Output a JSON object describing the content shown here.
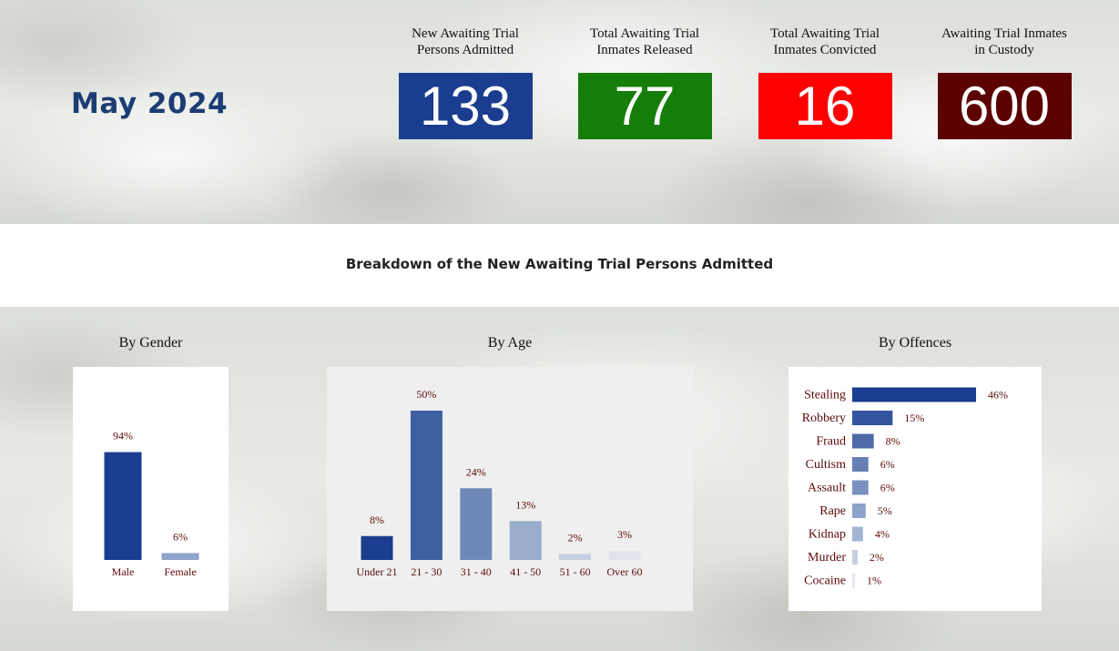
{
  "header": {
    "month": "May 2024",
    "kpis": [
      {
        "label_line1": "New Awaiting Trial",
        "label_line2": "Persons Admitted",
        "value": "133",
        "color": "#1b3d8f"
      },
      {
        "label_line1": "Total Awaiting Trial",
        "label_line2": "Inmates Released",
        "value": "77",
        "color": "#157e09"
      },
      {
        "label_line1": "Total Awaiting Trial",
        "label_line2": "Inmates Convicted",
        "value": "16",
        "color": "#fe0000"
      },
      {
        "label_line1": "Awaiting Trial Inmates",
        "label_line2": "in Custody",
        "value": "600",
        "color": "#5c0000"
      }
    ]
  },
  "breakdown_title": "Breakdown of the New Awaiting Trial Persons Admitted",
  "panels": {
    "gender_title": "By Gender",
    "age_title": "By Age",
    "offence_title": "By Offences"
  },
  "label_color": "#5c0a0a",
  "chart_data": [
    {
      "type": "bar",
      "orientation": "vertical",
      "categories": [
        "Male",
        "Female"
      ],
      "values": [
        94,
        6
      ],
      "labels": [
        "94%",
        "6%"
      ],
      "colors": [
        "#1b3d8f",
        "#8fa3cb"
      ],
      "ylim": [
        0,
        100
      ]
    },
    {
      "type": "bar",
      "orientation": "vertical",
      "categories": [
        "Under 21",
        "21 - 30",
        "31 - 40",
        "41 - 50",
        "51 - 60",
        "Over 60"
      ],
      "values": [
        8,
        50,
        24,
        13,
        2,
        3
      ],
      "labels": [
        "8%",
        "50%",
        "24%",
        "13%",
        "2%",
        "3%"
      ],
      "colors": [
        "#1b3d8f",
        "#3f5fa3",
        "#6d87b8",
        "#9aaccc",
        "#c4cfdf",
        "#dfe4ec"
      ],
      "ylim": [
        0,
        50
      ]
    },
    {
      "type": "bar",
      "orientation": "horizontal",
      "categories": [
        "Stealing",
        "Robbery",
        "Fraud",
        "Cultism",
        "Assault",
        "Rape",
        "Kidnap",
        "Murder",
        "Cocaine"
      ],
      "values": [
        46,
        15,
        8,
        6,
        6,
        5,
        4,
        2,
        1
      ],
      "labels": [
        "46%",
        "15%",
        "8%",
        "6%",
        "6%",
        "5%",
        "4%",
        "2%",
        "1%"
      ],
      "colors": [
        "#1b3d8f",
        "#34549d",
        "#4e69a8",
        "#6680b6",
        "#7a91c0",
        "#8ea3ca",
        "#a4b4d3",
        "#c6cfdf",
        "#e3e7ee"
      ],
      "xlim": [
        0,
        46
      ]
    }
  ]
}
